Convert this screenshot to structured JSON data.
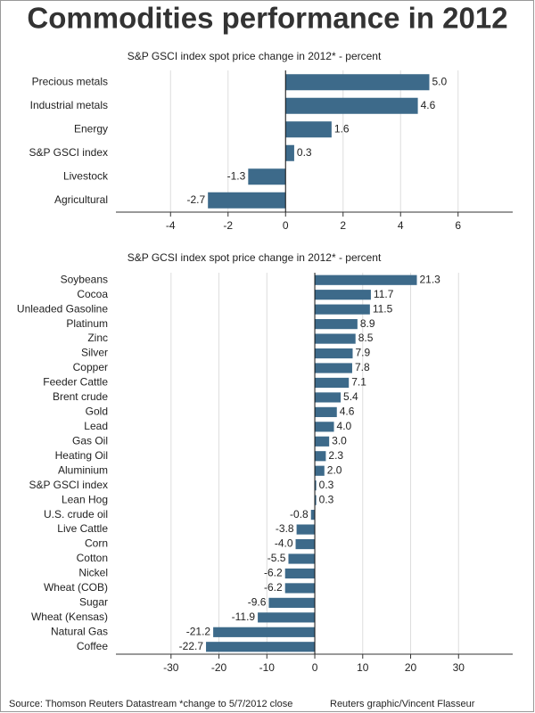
{
  "title": "Commodities performance in 2012",
  "chart_data": [
    {
      "type": "bar",
      "orientation": "horizontal",
      "subtitle": "S&P GSCI index spot price change in 2012* - percent",
      "categories": [
        "Precious metals",
        "Industrial metals",
        "Energy",
        "S&P GSCI index",
        "Livestock",
        "Agricultural"
      ],
      "values": [
        5.0,
        4.6,
        1.6,
        0.3,
        -1.3,
        -2.7
      ],
      "value_labels": [
        "5.0",
        "4.6",
        "1.6",
        "0.3",
        "-1.3",
        "-2.7"
      ],
      "color": "#3d6a8a",
      "xlim": [
        -5.9,
        7.9
      ],
      "xticks": [
        -4,
        -2,
        0,
        2,
        4,
        6
      ],
      "grid": true
    },
    {
      "type": "bar",
      "orientation": "horizontal",
      "subtitle": "S&P GCSI index spot price change in 2012* - percent",
      "categories": [
        "Soybeans",
        "Cocoa",
        "Unleaded Gasoline",
        "Platinum",
        "Zinc",
        "Silver",
        "Copper",
        "Feeder Cattle",
        "Brent crude",
        "Gold",
        "Lead",
        "Gas Oil",
        "Heating Oil",
        "Aluminium",
        "S&P GSCI index",
        "Lean Hog",
        "U.S. crude oil",
        "Live Cattle",
        "Corn",
        "Cotton",
        "Nickel",
        "Wheat (COB)",
        "Sugar",
        "Wheat (Kensas)",
        "Natural Gas",
        "Coffee"
      ],
      "values": [
        21.3,
        11.7,
        11.5,
        8.9,
        8.5,
        7.9,
        7.8,
        7.1,
        5.4,
        4.6,
        4.0,
        3.0,
        2.3,
        2.0,
        0.3,
        0.3,
        -0.8,
        -3.8,
        -4.0,
        -5.5,
        -6.2,
        -6.2,
        -9.6,
        -11.9,
        -21.2,
        -22.7
      ],
      "value_labels": [
        "21.3",
        "11.7",
        "11.5",
        "8.9",
        "8.5",
        "7.9",
        "7.8",
        "7.1",
        "5.4",
        "4.6",
        "4.0",
        "3.0",
        "2.3",
        "2.0",
        "0.3",
        "0.3",
        "-0.8",
        "-3.8",
        "-4.0",
        "-5.5",
        "-6.2",
        "-6.2",
        "-9.6",
        "-11.9",
        "-21.2",
        "-22.7"
      ],
      "color": "#3d6a8a",
      "xlim": [
        -41.5,
        41.3
      ],
      "xticks": [
        -30,
        -20,
        -10,
        0,
        10,
        20,
        30
      ],
      "grid": true
    }
  ],
  "source": "Source: Thomson Reuters Datastream *change to 5/7/2012 close",
  "credit": "Reuters graphic/Vincent Flasseur"
}
